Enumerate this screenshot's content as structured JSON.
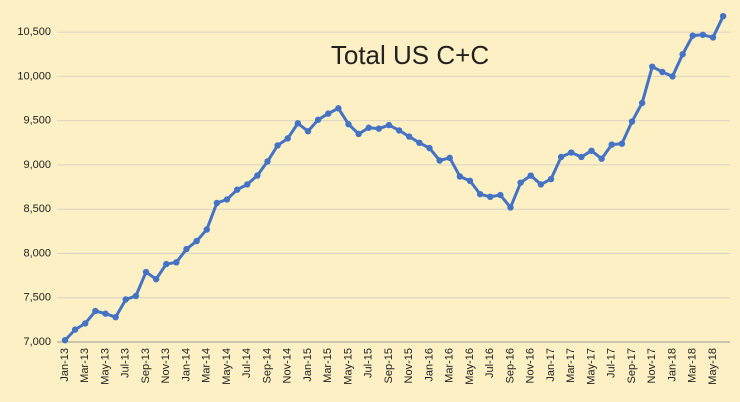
{
  "chart_data": {
    "type": "line",
    "title": "Total US C+C",
    "categories": [
      "Jan-13",
      null,
      "Mar-13",
      null,
      "May-13",
      null,
      "Jul-13",
      null,
      "Sep-13",
      null,
      "Nov-13",
      null,
      "Jan-14",
      null,
      "Mar-14",
      null,
      "May-14",
      null,
      "Jul-14",
      null,
      "Sep-14",
      null,
      "Nov-14",
      null,
      "Jan-15",
      null,
      "Mar-15",
      null,
      "May-15",
      null,
      "Jul-15",
      null,
      "Sep-15",
      null,
      "Nov-15",
      null,
      "Jan-16",
      null,
      "Mar-16",
      null,
      "May-16",
      null,
      "Jul-16",
      null,
      "Sep-16",
      null,
      "Nov-16",
      null,
      "Jan-17",
      null,
      "Mar-17",
      null,
      "May-17",
      null,
      "Jul-17",
      null,
      "Sep-17",
      null,
      "Nov-17",
      null,
      "Jan-18",
      null,
      "Mar-18",
      null,
      "May-18",
      null
    ],
    "series": [
      {
        "color": "#4472c4",
        "values": [
          7020,
          7140,
          7210,
          7350,
          7320,
          7280,
          7480,
          7520,
          7790,
          7710,
          7880,
          7900,
          8050,
          8140,
          8270,
          8570,
          8610,
          8720,
          8780,
          8880,
          9040,
          9220,
          9300,
          9470,
          9380,
          9510,
          9580,
          9640,
          9460,
          9350,
          9420,
          9410,
          9450,
          9390,
          9320,
          9250,
          9190,
          9050,
          9080,
          8870,
          8820,
          8670,
          8640,
          8660,
          8520,
          8800,
          8880,
          8780,
          8840,
          9090,
          9140,
          9090,
          9160,
          9070,
          9230,
          9240,
          9490,
          9700,
          10110,
          10050,
          10000,
          10250,
          10460,
          10470,
          10440,
          10680
        ]
      }
    ],
    "ylim": [
      7000,
      10750
    ],
    "yticks": [
      {
        "value": 7000,
        "label": "7,000"
      },
      {
        "value": 7500,
        "label": "7,500"
      },
      {
        "value": 8000,
        "label": "8,000"
      },
      {
        "value": 8500,
        "label": "8,500"
      },
      {
        "value": 9000,
        "label": "9,000"
      },
      {
        "value": 9500,
        "label": "9,500"
      },
      {
        "value": 10000,
        "label": "10,000"
      },
      {
        "value": 10500,
        "label": "10,500"
      }
    ],
    "grid": true
  }
}
